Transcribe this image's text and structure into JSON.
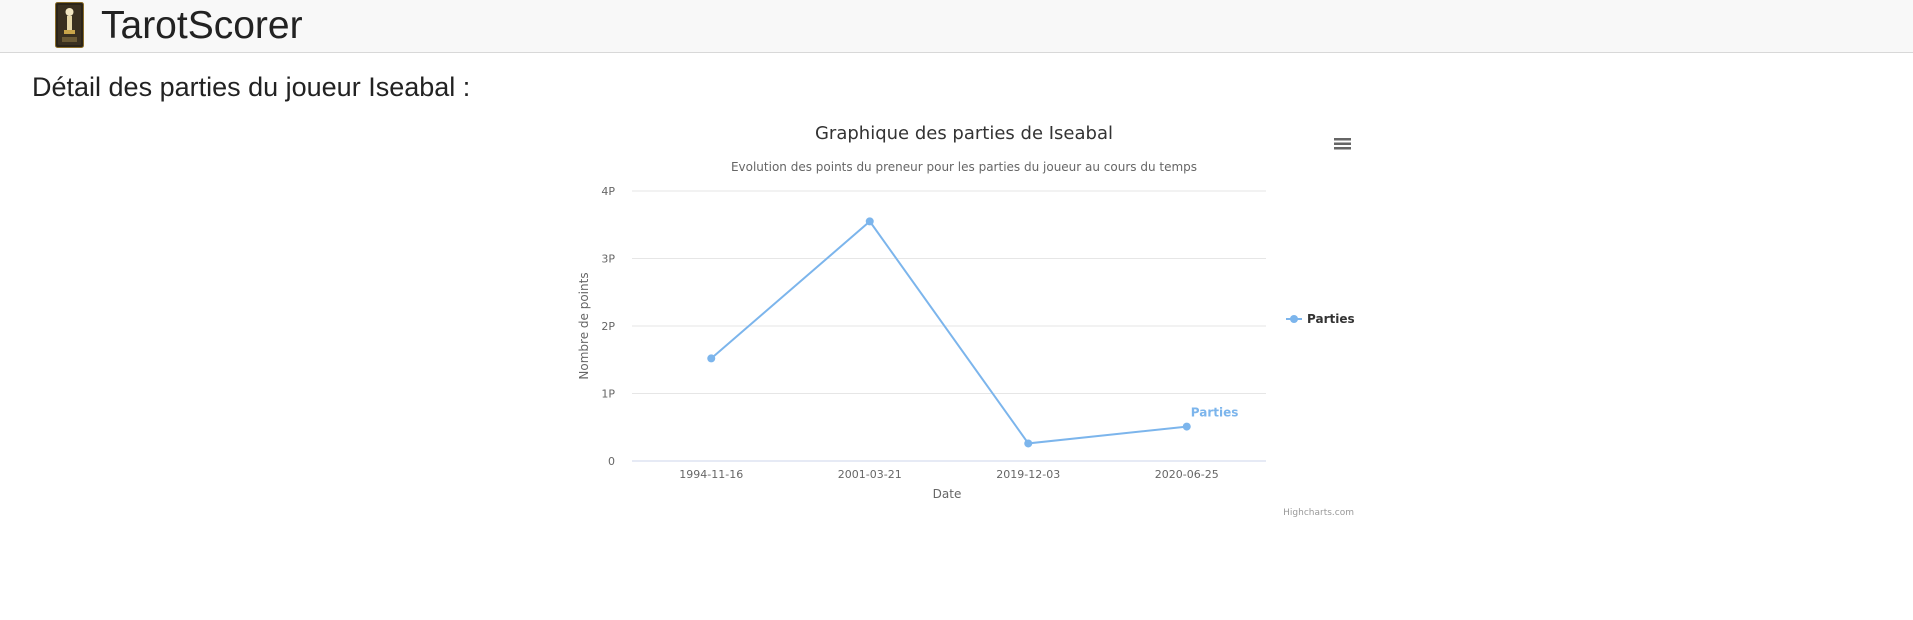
{
  "app": {
    "brand_name": "TarotScorer",
    "logo_icon": "tarot-card-icon"
  },
  "page": {
    "heading": "Détail des parties du joueur Iseabal :"
  },
  "chart": {
    "menu_icon": "hamburger-menu-icon",
    "credits": "Highcharts.com"
  },
  "colors": {
    "series": "#7cb5ec",
    "navbar_bg": "#f8f8f8"
  },
  "chart_data": {
    "type": "line",
    "title": "Graphique des parties de Iseabal",
    "subtitle": "Evolution des points du preneur pour les parties du joueur au cours du temps",
    "xlabel": "Date",
    "ylabel": "Nombre de points",
    "categories": [
      "1994-11-16",
      "2001-03-21",
      "2019-12-03",
      "2020-06-25"
    ],
    "series": [
      {
        "name": "Parties",
        "values": [
          1.52,
          3.55,
          0.26,
          0.51
        ]
      }
    ],
    "ylim": [
      0,
      4
    ],
    "y_ticks": [
      {
        "value": 0,
        "label": "0"
      },
      {
        "value": 1,
        "label": "1P"
      },
      {
        "value": 2,
        "label": "2P"
      },
      {
        "value": 3,
        "label": "3P"
      },
      {
        "value": 4,
        "label": "4P"
      }
    ],
    "grid": true,
    "legend_position": "right",
    "series_end_label": "Parties"
  }
}
